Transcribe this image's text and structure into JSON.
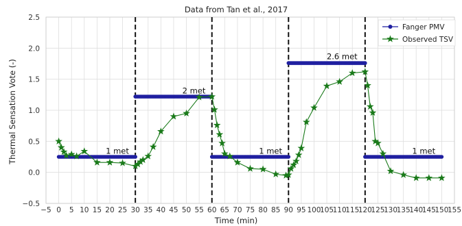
{
  "chart_data": {
    "type": "line",
    "title": "Data from Tan et al., 2017",
    "xlabel": "Time (min)",
    "ylabel": "Thermal Sensation Vote (-)",
    "xlim": [
      -5,
      155
    ],
    "ylim": [
      -0.5,
      2.5
    ],
    "xticks": [
      -5,
      0,
      5,
      10,
      15,
      20,
      25,
      30,
      35,
      40,
      45,
      50,
      55,
      60,
      65,
      70,
      75,
      80,
      85,
      90,
      95,
      100,
      105,
      110,
      115,
      120,
      125,
      130,
      135,
      140,
      145,
      150,
      155
    ],
    "yticks": [
      -0.5,
      0.0,
      0.5,
      1.0,
      1.5,
      2.0,
      2.5
    ],
    "ytick_labels": [
      "−0.5",
      "0.0",
      "0.5",
      "1.0",
      "1.5",
      "2.0",
      "2.5"
    ],
    "xtick_labels": [
      "−5",
      "0",
      "5",
      "10",
      "15",
      "20",
      "25",
      "30",
      "35",
      "40",
      "45",
      "50",
      "55",
      "60",
      "65",
      "70",
      "75",
      "80",
      "85",
      "90",
      "95",
      "100",
      "105",
      "110",
      "115",
      "120",
      "125",
      "130",
      "135",
      "140",
      "145",
      "150",
      "155"
    ],
    "grid": true,
    "legend_position": "top-right",
    "series": [
      {
        "name": "Fanger PMV",
        "color": "#1f1fa0",
        "marker": "circle",
        "segments": [
          {
            "x0": 0,
            "x1": 30,
            "y": 0.25
          },
          {
            "x0": 30,
            "x1": 60,
            "y": 1.22
          },
          {
            "x0": 60,
            "x1": 90,
            "y": 0.25
          },
          {
            "x0": 90,
            "x1": 120,
            "y": 1.76
          },
          {
            "x0": 120,
            "x1": 150,
            "y": 0.25
          }
        ]
      },
      {
        "name": "Observed TSV",
        "color": "#1a7a1a",
        "marker": "star",
        "x": [
          0,
          1,
          2,
          3,
          5,
          7,
          10,
          15,
          20,
          25,
          30,
          31,
          32,
          33,
          35,
          37,
          40,
          45,
          50,
          55,
          60,
          61,
          62,
          63,
          64,
          65,
          67,
          70,
          75,
          80,
          85,
          89,
          90,
          91,
          92,
          93,
          94,
          95,
          97,
          100,
          105,
          110,
          115,
          120,
          121,
          122,
          123,
          124,
          125,
          127,
          130,
          135,
          140,
          145,
          150
        ],
        "y": [
          0.5,
          0.4,
          0.33,
          0.27,
          0.29,
          0.26,
          0.34,
          0.16,
          0.16,
          0.15,
          0.1,
          0.13,
          0.17,
          0.2,
          0.26,
          0.41,
          0.66,
          0.9,
          0.95,
          1.21,
          1.22,
          1.01,
          0.76,
          0.61,
          0.47,
          0.3,
          0.26,
          0.16,
          0.06,
          0.05,
          -0.03,
          -0.05,
          -0.04,
          0.06,
          0.12,
          0.18,
          0.28,
          0.39,
          0.81,
          1.04,
          1.39,
          1.46,
          1.6,
          1.62,
          1.4,
          1.06,
          0.96,
          0.5,
          0.47,
          0.3,
          0.02,
          -0.04,
          -0.09,
          -0.09,
          -0.09
        ]
      }
    ],
    "vlines": [
      30,
      60,
      90,
      120
    ],
    "annotations": [
      {
        "text": "1 met",
        "x": 27.5,
        "y": 0.3
      },
      {
        "text": "2 met",
        "x": 57.5,
        "y": 1.27
      },
      {
        "text": "1 met",
        "x": 87.5,
        "y": 0.3
      },
      {
        "text": "2.6 met",
        "x": 117.0,
        "y": 1.82
      },
      {
        "text": "1 met",
        "x": 147.5,
        "y": 0.3
      }
    ]
  }
}
